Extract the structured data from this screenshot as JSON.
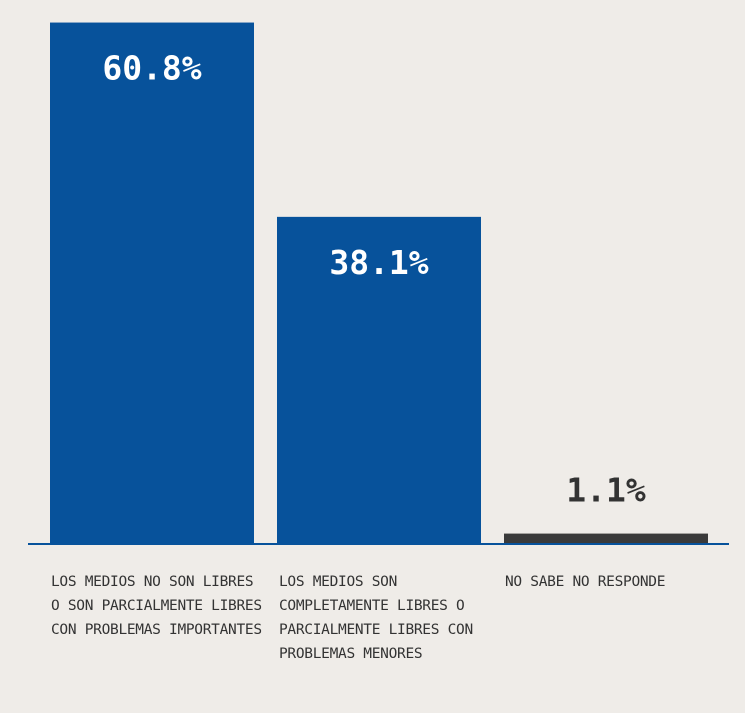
{
  "chart_data": {
    "type": "bar",
    "categories": [
      "LOS MEDIOS NO SON LIBRES O SON PARCIALMENTE LIBRES CON PROBLEMAS IMPORTANTES",
      "LOS MEDIOS SON COMPLETAMENTE LIBRES O PARCIALMENTE LIBRES CON PROBLEMAS MENORES",
      "NO SABE NO RESPONDE"
    ],
    "values": [
      60.8,
      38.1,
      1.1
    ],
    "data_labels": [
      "60.8%",
      "38.1%",
      "1.1%"
    ],
    "ylim": [
      0,
      62.5
    ],
    "grid": false,
    "colors": {
      "bars": [
        "#07529b",
        "#07529b",
        "#3a3a3a"
      ],
      "label_on_bar": "#ffffff",
      "label_above_bar": "#333333",
      "axis": "#07529b",
      "background": "#efece8"
    }
  }
}
